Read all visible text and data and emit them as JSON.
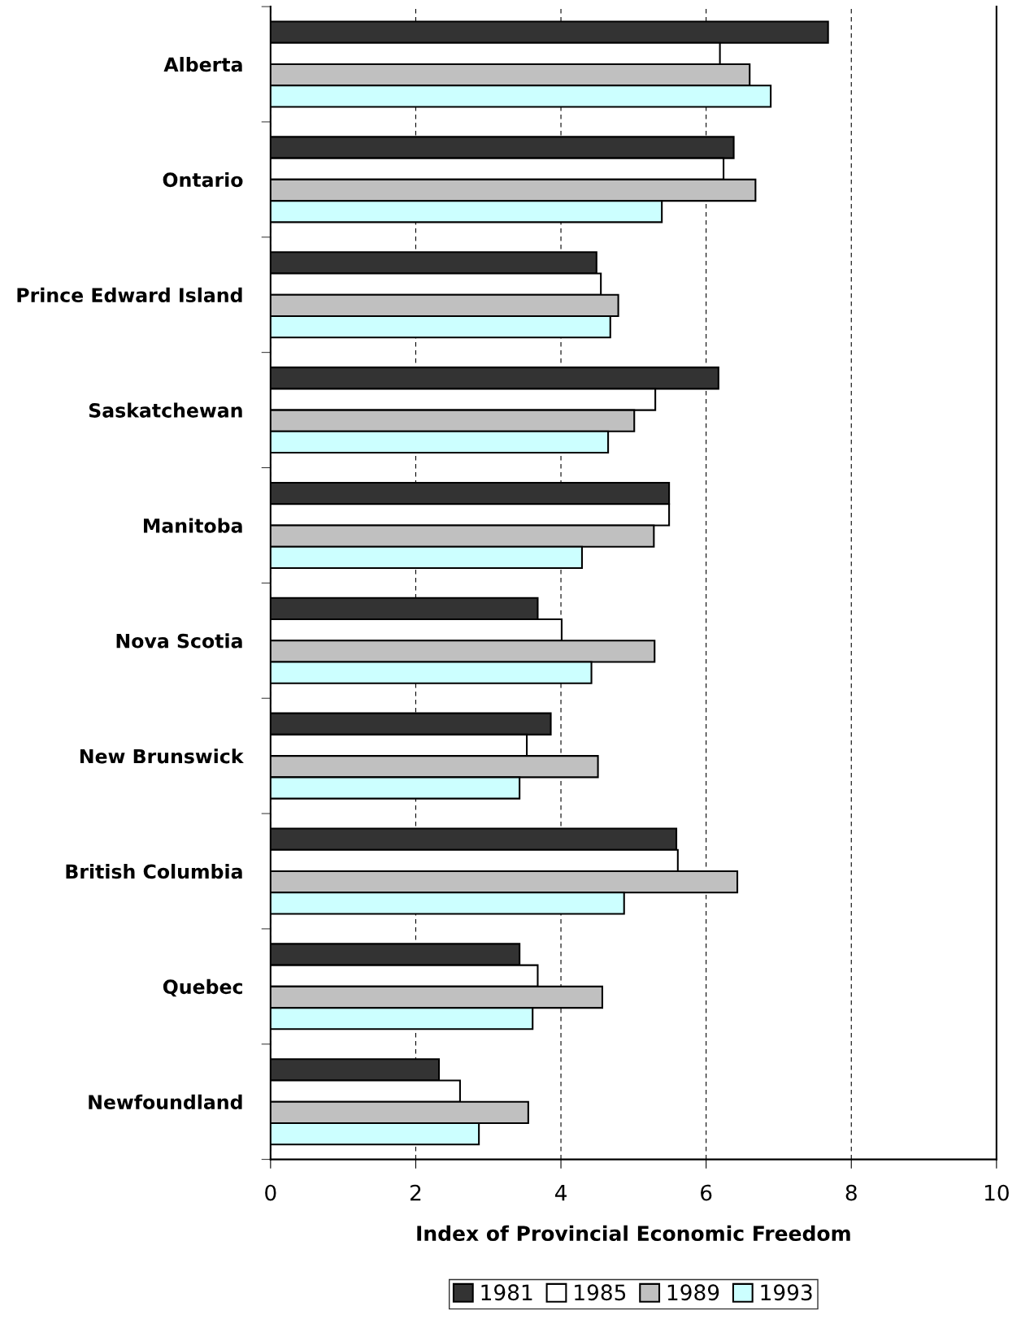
{
  "chart_data": {
    "type": "bar",
    "orientation": "horizontal",
    "xlabel": "Index of Provincial Economic Freedom",
    "categories": [
      "Alberta",
      "Ontario",
      "Prince Edward Island",
      "Saskatchewan",
      "Manitoba",
      "Nova Scotia",
      "New Brunswick",
      "British Columbia",
      "Quebec",
      "Newfoundland"
    ],
    "series": [
      {
        "name": "1981",
        "color": "#333333",
        "values": [
          7.68,
          6.38,
          4.49,
          6.17,
          5.49,
          3.68,
          3.86,
          5.59,
          3.43,
          2.32
        ]
      },
      {
        "name": "1985",
        "color": "#ffffff",
        "values": [
          6.19,
          6.24,
          4.55,
          5.3,
          5.49,
          4.01,
          3.53,
          5.61,
          3.68,
          2.61
        ]
      },
      {
        "name": "1989",
        "color": "#c0c0c0",
        "values": [
          6.6,
          6.68,
          4.79,
          5.01,
          5.28,
          5.29,
          4.51,
          6.43,
          4.57,
          3.55
        ]
      },
      {
        "name": "1993",
        "color": "#ccffff",
        "values": [
          6.89,
          5.39,
          4.68,
          4.65,
          4.29,
          4.42,
          3.43,
          4.87,
          3.61,
          2.87
        ]
      }
    ],
    "xlim": [
      0,
      10
    ],
    "xticks": [
      0,
      2,
      4,
      6,
      8,
      10
    ],
    "grid": "x",
    "legend": "bottom"
  }
}
